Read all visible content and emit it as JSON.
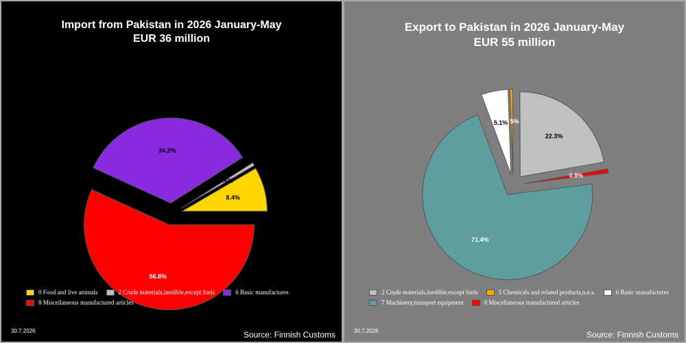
{
  "charts": [
    {
      "title_line1": "Import from Pakistan in 2026 January-May",
      "title_line2": "EUR    36 million",
      "date": "30.7.2026",
      "source": "Source: Finnish Customs",
      "background": "#000000"
    },
    {
      "title_line1": "Export to Pakistan in 2026 January-May",
      "title_line2": "EUR    55 million",
      "date": "30.7.2026",
      "source": "Source: Finnish Customs",
      "background": "#7f7f7f"
    }
  ],
  "chart_data": [
    {
      "type": "pie",
      "title": "Import from Pakistan in 2026 January-May",
      "subtitle": "EUR    36 million",
      "slices": [
        {
          "label": "0 Food and live animals",
          "value": 8.4,
          "color": "#ffd700",
          "data_label": "8.4%",
          "label_color": "#000000"
        },
        {
          "label": "2 Crude materials,inedible,except fuels",
          "value": 0.6,
          "color": "#c0c0c0",
          "data_label": "0.6%",
          "label_color": "#000000"
        },
        {
          "label": "6 Basic manufactures",
          "value": 34.2,
          "color": "#8a2be2",
          "data_label": "34.2%",
          "label_color": "#000000"
        },
        {
          "label": "8 Miscellaneous manufactured articles",
          "value": 56.8,
          "color": "#ff0000",
          "data_label": "56.8%",
          "label_color": "#ffffff"
        }
      ]
    },
    {
      "type": "pie",
      "title": "Export to Pakistan in 2026 January-May",
      "subtitle": "EUR    55 million",
      "slices": [
        {
          "label": "2 Crude materials,inedible,except fuels",
          "value": 22.3,
          "color": "#c0c0c0",
          "data_label": "22.3%",
          "label_color": "#000000"
        },
        {
          "label": "5 Chemicals and related products,n.e.s.",
          "value": 0.5,
          "color": "#ffa500",
          "data_label": "0.5%",
          "label_color": "#ffffff"
        },
        {
          "label": "6 Basic manufactures",
          "value": 5.1,
          "color": "#ffffff",
          "data_label": "5.1%",
          "label_color": "#000000"
        },
        {
          "label": "7 Machinery,transport equipment",
          "value": 71.4,
          "color": "#5f9ea0",
          "data_label": "71.4%",
          "label_color": "#ffffff"
        },
        {
          "label": "8 Miscellaneous manufactured articles",
          "value": 0.8,
          "color": "#ff0000",
          "data_label": "0.8%",
          "label_color": "#ffffff"
        }
      ]
    }
  ]
}
